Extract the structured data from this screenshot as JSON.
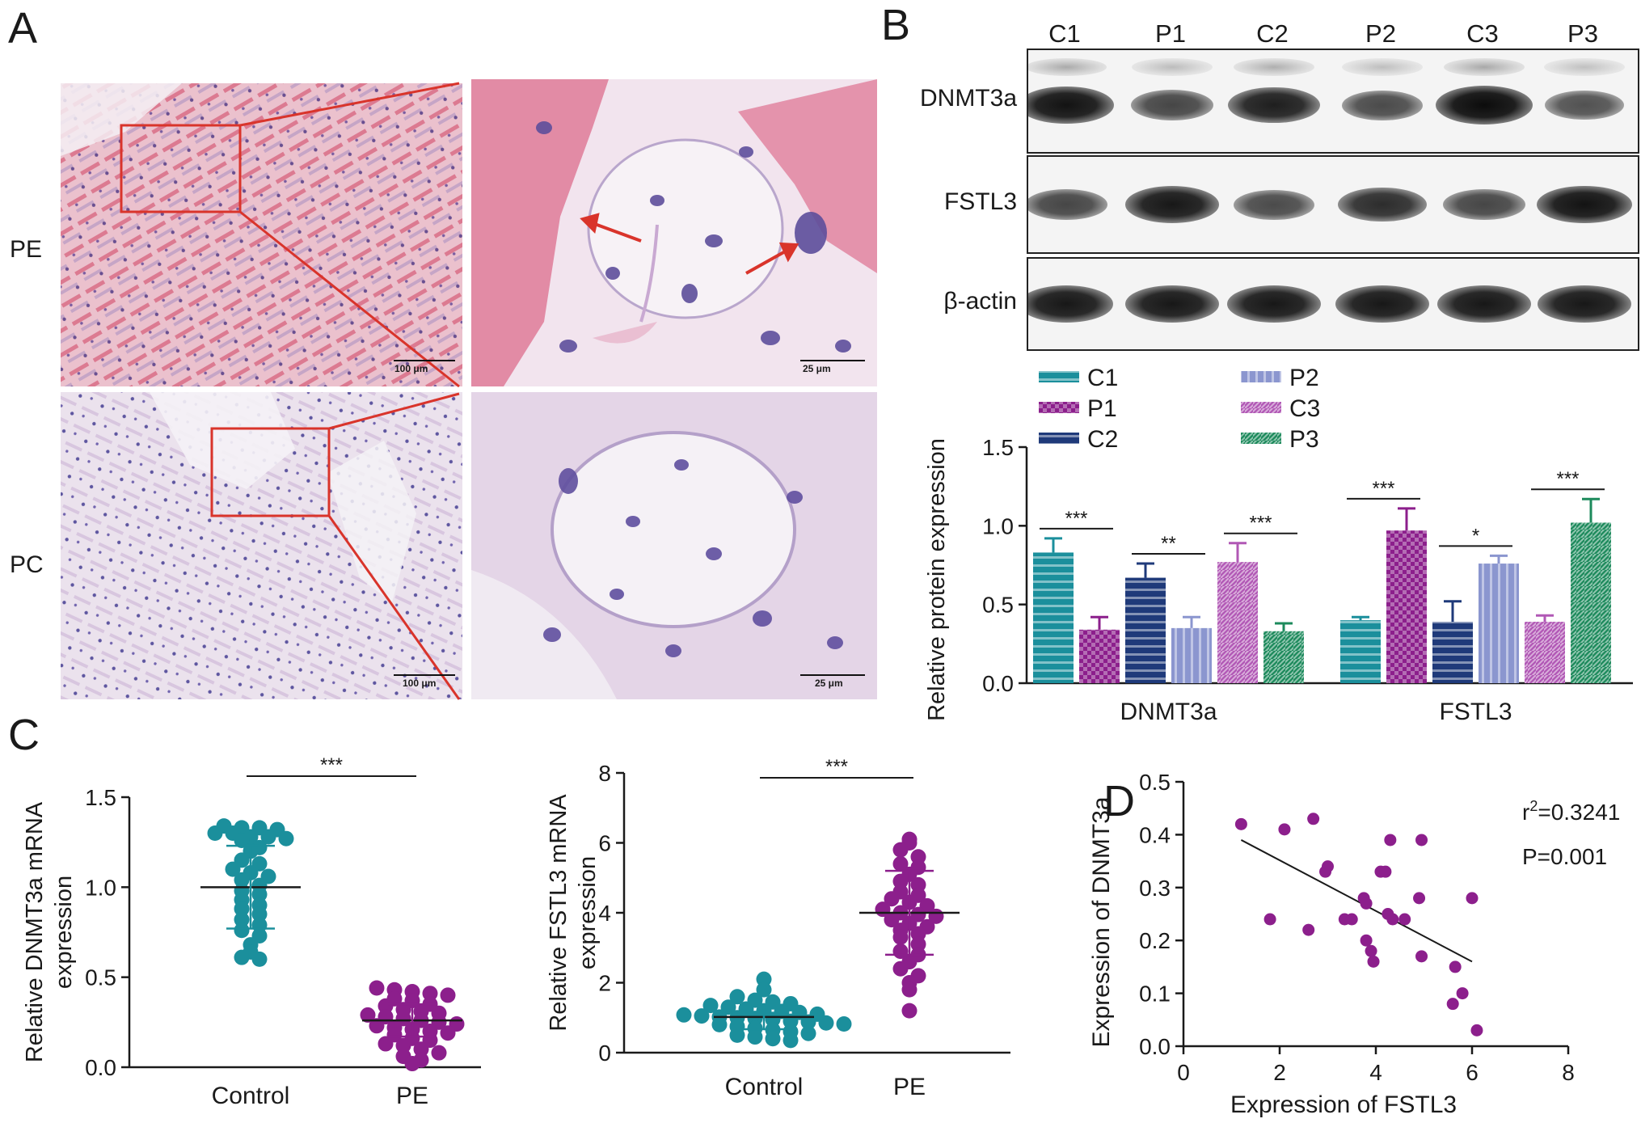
{
  "panels": {
    "A": "A",
    "B": "B",
    "C": "C",
    "D": "D"
  },
  "panel_a": {
    "row_labels": [
      "PE",
      "PC"
    ],
    "scale_bars": {
      "low_mag": "100 μm",
      "high_mag": "25 μm"
    }
  },
  "panel_b_blot": {
    "lanes": [
      "C1",
      "P1",
      "C2",
      "P2",
      "C3",
      "P3"
    ],
    "rows": [
      {
        "label": "DNMT3a",
        "band_intensity": [
          0.95,
          0.55,
          0.85,
          0.5,
          1.0,
          0.45
        ]
      },
      {
        "label": "FSTL3",
        "band_intensity": [
          0.55,
          0.9,
          0.5,
          0.75,
          0.55,
          0.95
        ]
      },
      {
        "label": "β-actin",
        "band_intensity": [
          0.9,
          0.9,
          0.9,
          0.9,
          0.9,
          0.9
        ]
      }
    ]
  },
  "chart_data": [
    {
      "type": "bar",
      "id": "B_bar",
      "ylabel": "Relative protein expression",
      "ylim": [
        0,
        1.5
      ],
      "yticks": [
        "0.0",
        "0.5",
        "1.0",
        "1.5"
      ],
      "categories": [
        "DNMT3a",
        "FSTL3"
      ],
      "legend_position": "top-left",
      "series": [
        {
          "name": "C1",
          "color": "#1b8f9c",
          "pattern": "horizontal",
          "values": [
            0.83,
            0.4
          ],
          "errors": [
            0.09,
            0.02
          ]
        },
        {
          "name": "P1",
          "color": "#8c1f8c",
          "pattern": "checker",
          "values": [
            0.34,
            0.97
          ],
          "errors": [
            0.08,
            0.14
          ]
        },
        {
          "name": "C2",
          "color": "#1f3a7a",
          "pattern": "horizontal",
          "values": [
            0.67,
            0.39
          ],
          "errors": [
            0.09,
            0.13
          ]
        },
        {
          "name": "P2",
          "color": "#8b96cf",
          "pattern": "vertical",
          "values": [
            0.35,
            0.76
          ],
          "errors": [
            0.07,
            0.05
          ]
        },
        {
          "name": "C3",
          "color": "#b158b5",
          "pattern": "diagonal",
          "values": [
            0.77,
            0.39
          ],
          "errors": [
            0.12,
            0.04
          ]
        },
        {
          "name": "P3",
          "color": "#1d8a5c",
          "pattern": "diagonal",
          "values": [
            0.33,
            1.02
          ],
          "errors": [
            0.05,
            0.15
          ]
        }
      ],
      "significance": [
        {
          "label": "***",
          "category": 0,
          "from": 0,
          "to": 1
        },
        {
          "label": "**",
          "category": 0,
          "from": 2,
          "to": 3
        },
        {
          "label": "***",
          "category": 0,
          "from": 4,
          "to": 5
        },
        {
          "label": "***",
          "category": 1,
          "from": 0,
          "to": 1
        },
        {
          "label": "*",
          "category": 1,
          "from": 2,
          "to": 3
        },
        {
          "label": "***",
          "category": 1,
          "from": 4,
          "to": 5
        }
      ]
    },
    {
      "type": "scatter",
      "id": "C_dnmt3a",
      "ylabel": "Relative DNMT3a mRNA\nexpression",
      "ylim": [
        0,
        1.5
      ],
      "yticks": [
        "0.0",
        "0.5",
        "1.0",
        "1.5"
      ],
      "categories": [
        "Control",
        "PE"
      ],
      "significance": "***",
      "series": [
        {
          "name": "Control",
          "color": "#1b8f9c",
          "mean": 1.0,
          "sd": 0.23,
          "values": [
            1.34,
            1.33,
            1.33,
            1.32,
            1.3,
            1.3,
            1.28,
            1.28,
            1.27,
            1.26,
            1.22,
            1.2,
            1.15,
            1.13,
            1.1,
            1.08,
            1.06,
            1.04,
            1.01,
            0.98,
            0.96,
            0.93,
            0.9,
            0.88,
            0.85,
            0.82,
            0.79,
            0.76,
            0.73,
            0.68,
            0.64,
            0.61,
            0.6
          ]
        },
        {
          "name": "PE",
          "color": "#8c1f8c",
          "mean": 0.26,
          "sd": 0.09,
          "values": [
            0.44,
            0.43,
            0.42,
            0.41,
            0.4,
            0.38,
            0.37,
            0.35,
            0.34,
            0.32,
            0.31,
            0.3,
            0.29,
            0.28,
            0.27,
            0.26,
            0.25,
            0.24,
            0.23,
            0.22,
            0.21,
            0.2,
            0.19,
            0.18,
            0.16,
            0.15,
            0.13,
            0.12,
            0.1,
            0.08,
            0.06,
            0.04,
            0.02
          ]
        }
      ]
    },
    {
      "type": "scatter",
      "id": "C_fstl3",
      "ylabel": "Relative FSTL3 mRNA\nexpression",
      "ylim": [
        0,
        8
      ],
      "yticks": [
        "0",
        "2",
        "4",
        "6",
        "8"
      ],
      "categories": [
        "Control",
        "PE"
      ],
      "significance": "***",
      "series": [
        {
          "name": "Control",
          "color": "#1b8f9c",
          "mean": 1.02,
          "sd": 0.35,
          "values": [
            2.1,
            1.8,
            1.6,
            1.5,
            1.45,
            1.4,
            1.35,
            1.3,
            1.25,
            1.2,
            1.18,
            1.15,
            1.1,
            1.08,
            1.05,
            1.02,
            1.0,
            0.98,
            0.95,
            0.9,
            0.88,
            0.85,
            0.82,
            0.8,
            0.75,
            0.7,
            0.65,
            0.6,
            0.55,
            0.5,
            0.45,
            0.4,
            0.35
          ]
        },
        {
          "name": "PE",
          "color": "#8c1f8c",
          "mean": 4.0,
          "sd": 1.2,
          "values": [
            6.1,
            6.0,
            5.8,
            5.6,
            5.4,
            5.3,
            5.1,
            4.9,
            4.8,
            4.6,
            4.5,
            4.4,
            4.3,
            4.2,
            4.1,
            4.0,
            3.95,
            3.9,
            3.8,
            3.7,
            3.6,
            3.5,
            3.4,
            3.3,
            3.1,
            2.9,
            2.8,
            2.6,
            2.4,
            2.2,
            2.0,
            1.8,
            1.2
          ]
        }
      ]
    },
    {
      "type": "scatter",
      "id": "D_corr",
      "xlabel": "Expression of FSTL3",
      "ylabel": "Expression of DNMT3a",
      "xlim": [
        0,
        8
      ],
      "ylim": [
        0,
        0.5
      ],
      "xticks": [
        "0",
        "2",
        "4",
        "6",
        "8"
      ],
      "yticks": [
        "0.0",
        "0.1",
        "0.2",
        "0.3",
        "0.4",
        "0.5"
      ],
      "color": "#8c1f8c",
      "points": [
        [
          1.2,
          0.42
        ],
        [
          1.8,
          0.24
        ],
        [
          2.1,
          0.41
        ],
        [
          2.6,
          0.22
        ],
        [
          2.7,
          0.43
        ],
        [
          2.95,
          0.33
        ],
        [
          3.0,
          0.34
        ],
        [
          3.35,
          0.24
        ],
        [
          3.5,
          0.24
        ],
        [
          3.75,
          0.28
        ],
        [
          3.8,
          0.27
        ],
        [
          3.8,
          0.2
        ],
        [
          3.9,
          0.18
        ],
        [
          3.95,
          0.16
        ],
        [
          4.1,
          0.33
        ],
        [
          4.2,
          0.33
        ],
        [
          4.25,
          0.25
        ],
        [
          4.3,
          0.39
        ],
        [
          4.35,
          0.24
        ],
        [
          4.6,
          0.24
        ],
        [
          4.9,
          0.28
        ],
        [
          4.95,
          0.17
        ],
        [
          4.95,
          0.39
        ],
        [
          5.6,
          0.08
        ],
        [
          5.65,
          0.15
        ],
        [
          5.8,
          0.1
        ],
        [
          6.0,
          0.28
        ],
        [
          6.1,
          0.03
        ]
      ],
      "regression": {
        "x": [
          1.2,
          6.0
        ],
        "y": [
          0.39,
          0.16
        ]
      },
      "annotations": {
        "r2_prefix": "r",
        "r2_sup": "2",
        "r2_value": "=0.3241",
        "p": "P=0.001"
      }
    }
  ]
}
